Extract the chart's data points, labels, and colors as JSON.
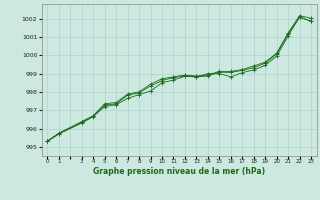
{
  "xlabel": "Graphe pression niveau de la mer (hPa)",
  "xlim": [
    -0.5,
    23.5
  ],
  "ylim": [
    994.5,
    1002.8
  ],
  "yticks": [
    995,
    996,
    997,
    998,
    999,
    1000,
    1001,
    1002
  ],
  "xticks": [
    0,
    1,
    2,
    3,
    4,
    5,
    6,
    7,
    8,
    9,
    10,
    11,
    12,
    13,
    14,
    15,
    16,
    17,
    18,
    19,
    20,
    21,
    22,
    23
  ],
  "bg_color": "#cce8e0",
  "grid_color": "#aad4cc",
  "line_color": "#1a6b1a",
  "series1_x": [
    0,
    1,
    3,
    4,
    5,
    6,
    7,
    8,
    9,
    10,
    11,
    12,
    13,
    14,
    15,
    16,
    17,
    18,
    19,
    20,
    21,
    22,
    23
  ],
  "series1_y": [
    995.3,
    995.7,
    996.3,
    996.65,
    997.2,
    997.3,
    997.65,
    997.85,
    998.05,
    998.5,
    998.65,
    998.85,
    998.82,
    999.0,
    999.0,
    998.82,
    999.05,
    999.2,
    999.45,
    999.95,
    1001.05,
    1002.1,
    1001.85
  ],
  "series2_x": [
    0,
    1,
    3,
    4,
    5,
    6,
    7,
    8,
    9,
    10,
    11,
    12,
    13,
    14,
    15,
    16,
    17,
    18,
    19,
    20,
    21,
    22,
    23
  ],
  "series2_y": [
    995.3,
    995.72,
    996.33,
    996.68,
    997.28,
    997.35,
    997.82,
    997.95,
    998.32,
    998.62,
    998.78,
    998.87,
    998.82,
    998.87,
    999.07,
    999.07,
    999.17,
    999.32,
    999.57,
    1000.07,
    1001.17,
    1002.07,
    1001.87
  ],
  "series3_x": [
    0,
    1,
    3,
    4,
    5,
    6,
    7,
    8,
    9,
    10,
    11,
    12,
    13,
    14,
    15,
    16,
    17,
    18,
    19,
    20,
    21,
    22,
    23
  ],
  "series3_y": [
    995.32,
    995.75,
    996.38,
    996.7,
    997.35,
    997.42,
    997.88,
    998.0,
    998.42,
    998.72,
    998.82,
    998.92,
    998.87,
    998.92,
    999.12,
    999.12,
    999.22,
    999.42,
    999.62,
    1000.12,
    1001.22,
    1002.17,
    1002.02
  ]
}
